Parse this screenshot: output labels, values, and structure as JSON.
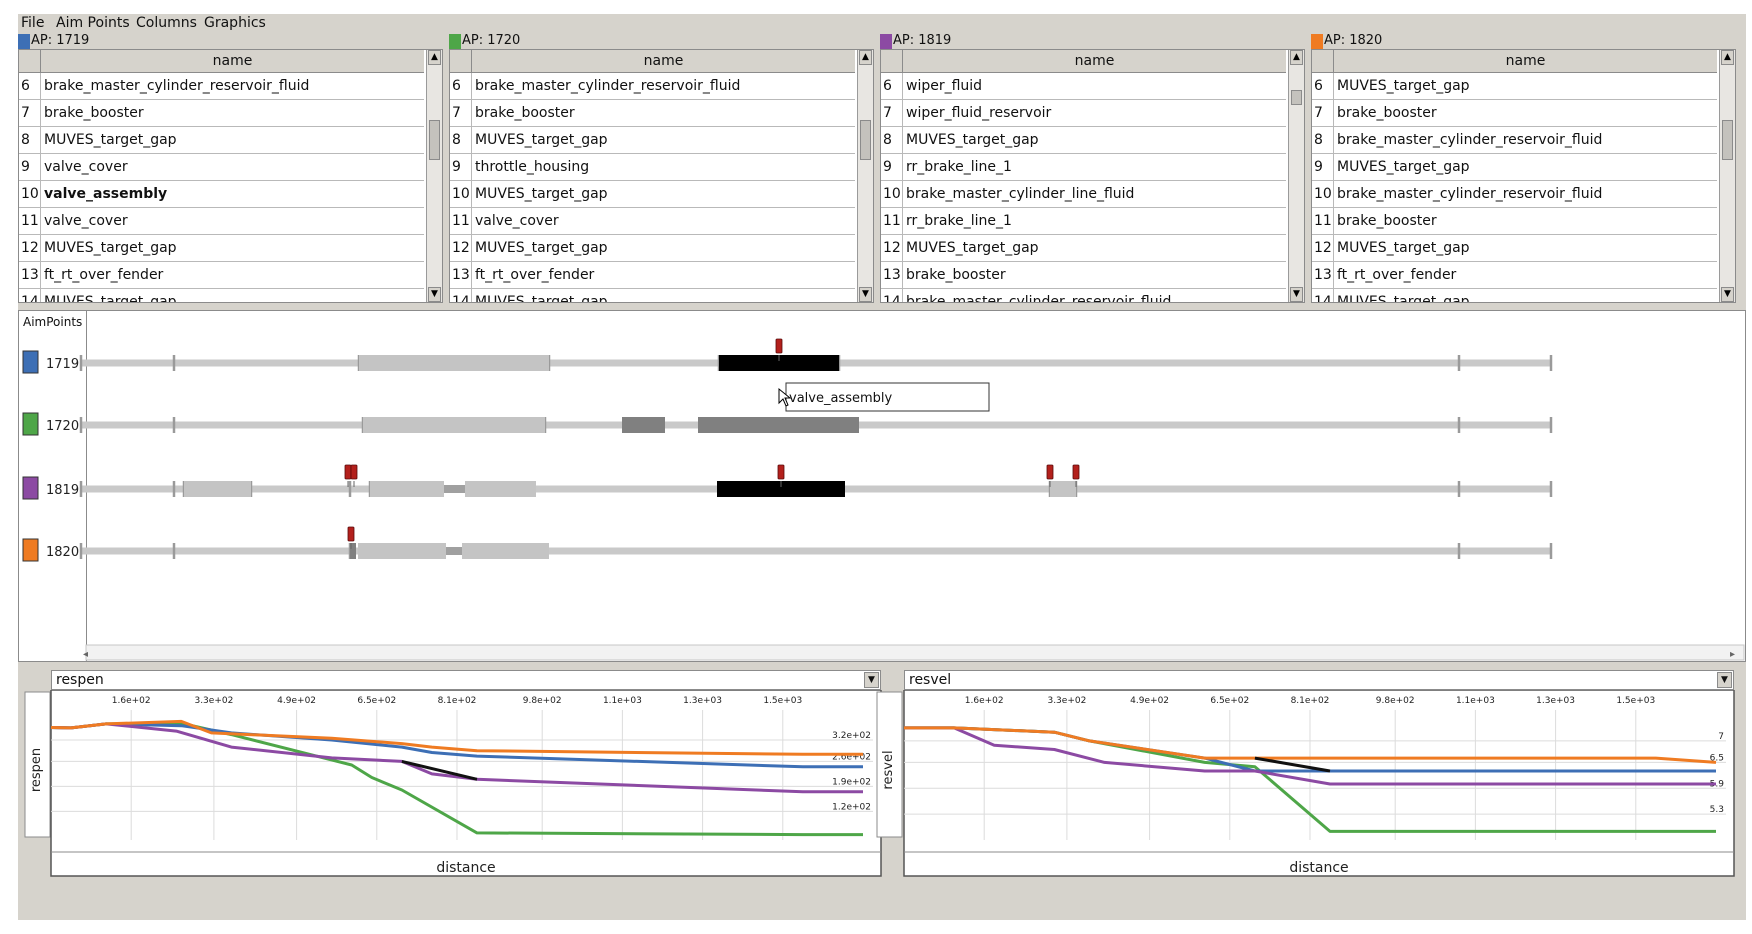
{
  "menu": [
    "File",
    "Aim Points",
    "Columns",
    "Graphics"
  ],
  "header": {
    "name_col": "name"
  },
  "panels": [
    {
      "label": "AP: 1719",
      "color": "#3d6fb5",
      "rows": [
        [
          "6",
          "brake_master_cylinder_reservoir_fluid"
        ],
        [
          "7",
          "brake_booster"
        ],
        [
          "8",
          "MUVES_target_gap"
        ],
        [
          "9",
          "valve_cover"
        ],
        [
          "10",
          "valve_assembly"
        ],
        [
          "11",
          "valve_cover"
        ],
        [
          "12",
          "MUVES_target_gap"
        ],
        [
          "13",
          "ft_rt_over_fender"
        ],
        [
          "14",
          "MUVES_target_gap"
        ]
      ],
      "bold_row": 4,
      "thumb": [
        70,
        110
      ]
    },
    {
      "label": "AP: 1720",
      "color": "#4ea648",
      "rows": [
        [
          "6",
          "brake_master_cylinder_reservoir_fluid"
        ],
        [
          "7",
          "brake_booster"
        ],
        [
          "8",
          "MUVES_target_gap"
        ],
        [
          "9",
          "throttle_housing"
        ],
        [
          "10",
          "MUVES_target_gap"
        ],
        [
          "11",
          "valve_cover"
        ],
        [
          "12",
          "MUVES_target_gap"
        ],
        [
          "13",
          "ft_rt_over_fender"
        ],
        [
          "14",
          "MUVES_target_gap"
        ]
      ],
      "bold_row": -1,
      "thumb": [
        70,
        110
      ]
    },
    {
      "label": "AP: 1819",
      "color": "#8c4aa3",
      "rows": [
        [
          "6",
          "wiper_fluid"
        ],
        [
          "7",
          "wiper_fluid_reservoir"
        ],
        [
          "8",
          "MUVES_target_gap"
        ],
        [
          "9",
          "rr_brake_line_1"
        ],
        [
          "10",
          "brake_master_cylinder_line_fluid"
        ],
        [
          "11",
          "rr_brake_line_1"
        ],
        [
          "12",
          "MUVES_target_gap"
        ],
        [
          "13",
          "brake_booster"
        ],
        [
          "14",
          "brake_master_cylinder_reservoir_fluid"
        ]
      ],
      "bold_row": -1,
      "thumb": [
        40,
        55
      ]
    },
    {
      "label": "AP: 1820",
      "color": "#ef7b22",
      "rows": [
        [
          "6",
          "MUVES_target_gap"
        ],
        [
          "7",
          "brake_booster"
        ],
        [
          "8",
          "brake_master_cylinder_reservoir_fluid"
        ],
        [
          "9",
          "MUVES_target_gap"
        ],
        [
          "10",
          "brake_master_cylinder_reservoir_fluid"
        ],
        [
          "11",
          "brake_booster"
        ],
        [
          "12",
          "MUVES_target_gap"
        ],
        [
          "13",
          "ft_rt_over_fender"
        ],
        [
          "14",
          "MUVES_target_gap"
        ]
      ],
      "bold_row": -1,
      "thumb": [
        70,
        110
      ]
    }
  ],
  "tracks": {
    "header": "AimPoints",
    "tooltip": "valve_assembly",
    "items": [
      {
        "id": "1719",
        "color": "#3d6fb5"
      },
      {
        "id": "1720",
        "color": "#4ea648"
      },
      {
        "id": "1819",
        "color": "#8c4aa3"
      },
      {
        "id": "1820",
        "color": "#ef7b22"
      }
    ]
  },
  "chart_data": [
    {
      "type": "line",
      "selector": "respen",
      "xlabel": "distance",
      "ylabel": "respen",
      "x_ticks": [
        "1.6e+02",
        "3.3e+02",
        "4.9e+02",
        "6.5e+02",
        "8.1e+02",
        "9.8e+02",
        "1.1e+03",
        "1.3e+03",
        "1.5e+03"
      ],
      "x_tick_values": [
        160,
        325,
        490,
        650,
        810,
        980,
        1140,
        1300,
        1460
      ],
      "y_ticks": [
        "3.2e+02",
        "2.6e+02",
        "1.9e+02",
        "1.2e+02"
      ],
      "y_tick_values": [
        320,
        260,
        190,
        120
      ],
      "xlim": [
        0,
        1640
      ],
      "ylim": [
        40,
        390
      ],
      "series": [
        {
          "color": "#4ea648",
          "x": [
            0,
            40,
            110,
            260,
            360,
            600,
            640,
            700,
            850,
            1500,
            1620
          ],
          "y": [
            355,
            354,
            365,
            367,
            335,
            250,
            215,
            180,
            60,
            55,
            55
          ]
        },
        {
          "color": "#3d6fb5",
          "x": [
            0,
            40,
            110,
            260,
            360,
            560,
            700,
            760,
            850,
            1500,
            1620
          ],
          "y": [
            355,
            354,
            365,
            360,
            340,
            320,
            300,
            285,
            275,
            245,
            245
          ]
        },
        {
          "color": "#8c4aa3",
          "x": [
            0,
            40,
            110,
            250,
            360,
            560,
            700,
            760,
            850,
            1500,
            1620
          ],
          "y": [
            355,
            354,
            365,
            345,
            300,
            270,
            260,
            225,
            210,
            175,
            175
          ]
        },
        {
          "color": "#ef7b22",
          "x": [
            0,
            40,
            110,
            260,
            320,
            560,
            700,
            760,
            850,
            1500,
            1620
          ],
          "y": [
            355,
            354,
            365,
            372,
            340,
            325,
            310,
            300,
            290,
            280,
            280
          ]
        },
        {
          "color": "#111111",
          "x": [
            700,
            850
          ],
          "y": [
            260,
            210
          ]
        }
      ]
    },
    {
      "type": "line",
      "selector": "resvel",
      "xlabel": "distance",
      "ylabel": "resvel",
      "x_ticks": [
        "1.6e+02",
        "3.3e+02",
        "4.9e+02",
        "6.5e+02",
        "8.1e+02",
        "9.8e+02",
        "1.1e+03",
        "1.3e+03",
        "1.5e+03"
      ],
      "x_tick_values": [
        160,
        325,
        490,
        650,
        810,
        980,
        1140,
        1300,
        1460
      ],
      "y_ticks": [
        "7",
        "6.5",
        "5.9",
        "5.3"
      ],
      "y_tick_values": [
        7.0,
        6.5,
        5.9,
        5.3
      ],
      "xlim": [
        0,
        1640
      ],
      "ylim": [
        4.7,
        7.6
      ],
      "series": [
        {
          "color": "#4ea648",
          "x": [
            0,
            100,
            300,
            370,
            600,
            700,
            850,
            1500,
            1620
          ],
          "y": [
            7.3,
            7.3,
            7.2,
            7.0,
            6.5,
            6.4,
            4.9,
            4.9,
            4.9
          ]
        },
        {
          "color": "#3d6fb5",
          "x": [
            0,
            100,
            300,
            370,
            600,
            700,
            850,
            1500,
            1620
          ],
          "y": [
            7.3,
            7.3,
            7.2,
            7.0,
            6.6,
            6.3,
            6.3,
            6.3,
            6.3
          ]
        },
        {
          "color": "#8c4aa3",
          "x": [
            0,
            100,
            180,
            300,
            400,
            600,
            700,
            850,
            1500,
            1620
          ],
          "y": [
            7.3,
            7.3,
            6.9,
            6.8,
            6.5,
            6.3,
            6.3,
            6.0,
            6.0,
            6.0
          ]
        },
        {
          "color": "#ef7b22",
          "x": [
            0,
            100,
            300,
            370,
            600,
            700,
            850,
            1500,
            1620
          ],
          "y": [
            7.3,
            7.3,
            7.2,
            7.0,
            6.6,
            6.6,
            6.6,
            6.6,
            6.5
          ]
        },
        {
          "color": "#111111",
          "x": [
            700,
            850
          ],
          "y": [
            6.6,
            6.3
          ]
        }
      ]
    }
  ]
}
